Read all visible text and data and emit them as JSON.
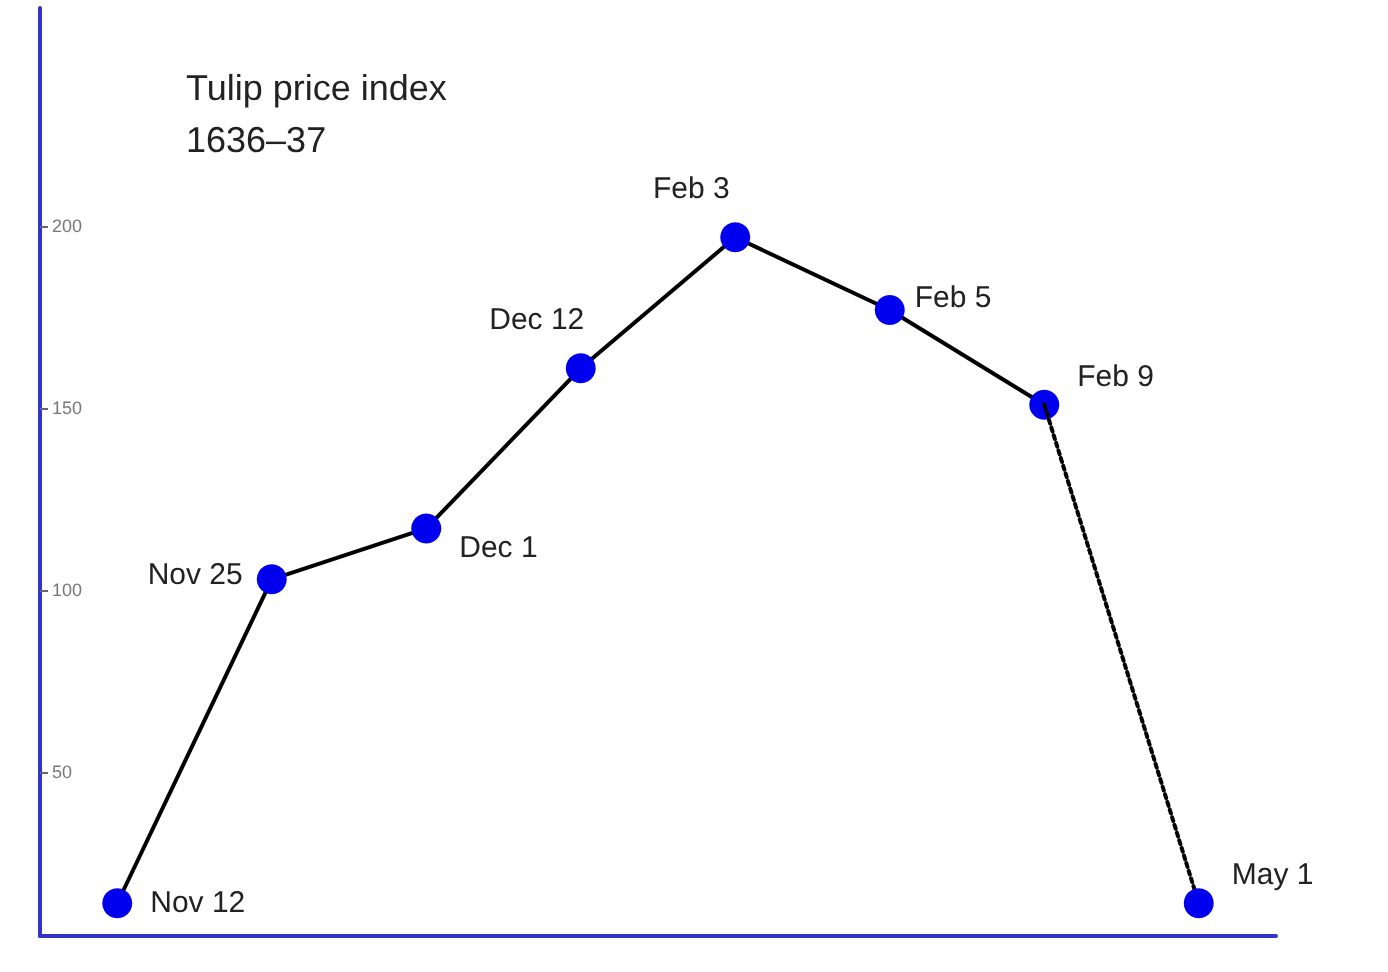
{
  "chart_data": {
    "type": "line",
    "title": "Tulip price index",
    "subtitle": "1636–37",
    "categories": [
      null,
      null,
      null,
      null,
      null,
      null,
      null,
      null
    ],
    "ylim": [
      5,
      260
    ],
    "yticks": [
      50,
      100,
      150,
      200
    ],
    "tick_labels": "y",
    "grid": false,
    "series": [
      {
        "color": "#000000",
        "marker": "circle",
        "line_style": "solid",
        "values": [
          14,
          103,
          117,
          161,
          197,
          177,
          151,
          null
        ],
        "colors": [
          "#0000ee",
          "#0000ee",
          "#0000ee",
          "#0000ee",
          "#0000ee",
          "#0000ee",
          "#0000ee",
          null
        ],
        "value_labels": [
          "Nov 12",
          "Nov 25",
          "Dec 1",
          "Dec 12",
          "Feb 3",
          "Feb 5",
          "Feb 9",
          null
        ]
      },
      {
        "color": "#000000",
        "marker": "circle",
        "line_style": "dotted",
        "values": [
          null,
          null,
          null,
          null,
          null,
          null,
          151,
          14
        ],
        "colors": [
          null,
          null,
          null,
          null,
          null,
          null,
          null,
          "#0000ee"
        ],
        "value_labels": [
          null,
          null,
          null,
          null,
          null,
          null,
          null,
          "May 1"
        ]
      }
    ]
  }
}
